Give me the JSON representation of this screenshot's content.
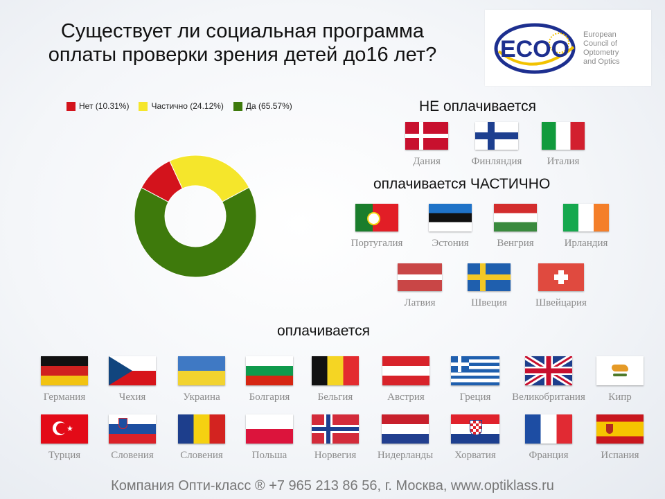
{
  "title_line1": "Существует ли социальная программа",
  "title_line2": "оплаты проверки зрения детей до16 лет?",
  "logo": {
    "text": "ECOO",
    "sub1": "European",
    "sub2": "Council of",
    "sub3": "Optometry",
    "sub4": "and Optics"
  },
  "chart_data": {
    "type": "pie",
    "variant": "donut",
    "slices": [
      {
        "label": "Нет (10.31%)",
        "value": 10.31,
        "color": "#d3131c"
      },
      {
        "label": "Частично (24.12%)",
        "value": 24.12,
        "color": "#f5e62b"
      },
      {
        "label": "Да (65.57%)",
        "value": 65.57,
        "color": "#3e7a0c"
      }
    ],
    "legend_position": "top"
  },
  "sections": {
    "not_paid": "НЕ оплачивается",
    "partial": "оплачивается ЧАСТИЧНО",
    "paid": "оплачивается"
  },
  "flags": {
    "not_paid": [
      "Дания",
      "Финляндия",
      "Италия"
    ],
    "partial": [
      "Португалия",
      "Эстония",
      "Венгрия",
      "Ирландия",
      "Латвия",
      "Швеция",
      "Швейцария"
    ],
    "paid_row1": [
      "Германия",
      "Чехия",
      "Украина",
      "Болгария",
      "Бельгия",
      "Австрия",
      "Греция",
      "Великобритания",
      "Кипр"
    ],
    "paid_row2": [
      "Турция",
      "Словения",
      "Словения",
      "Польша",
      "Норвегия",
      "Нидерланды",
      "Хорватия",
      "Франция",
      "Испания"
    ]
  },
  "footer": "Компания Опти-класс ® +7 965 213 86 56, г. Москва, www.optiklass.ru"
}
